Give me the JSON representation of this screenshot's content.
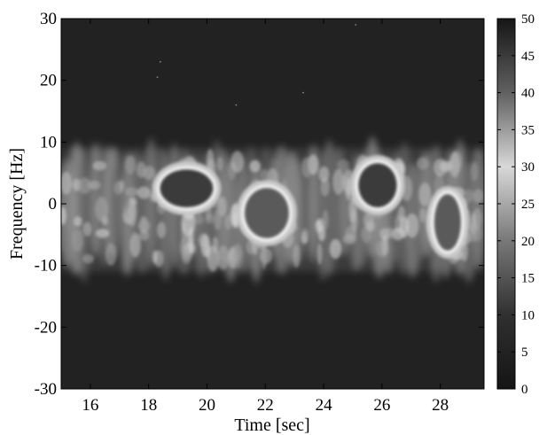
{
  "chart_data": {
    "type": "heatmap",
    "title": "",
    "xlabel": "Time [sec]",
    "ylabel": "Frequency [Hz]",
    "xlim": [
      15,
      29.5
    ],
    "ylim": [
      -30,
      30
    ],
    "xticks": [
      16,
      18,
      20,
      22,
      24,
      26,
      28
    ],
    "yticks": [
      -30,
      -20,
      -10,
      0,
      10,
      20,
      30
    ],
    "colorbar": {
      "range": [
        0,
        50
      ],
      "ticks": [
        0,
        5,
        10,
        15,
        20,
        25,
        30,
        35,
        40,
        45,
        50
      ],
      "colormap": "dark-light-dark gray (peak brightness near 30)",
      "placement": "right"
    },
    "background_level": 0,
    "spectral_band_hz": [
      -13,
      11
    ],
    "high_energy_regions": [
      {
        "time": [
          18.3,
          20.3
        ],
        "freq": [
          -1,
          6
        ],
        "peak_level": 48
      },
      {
        "time": [
          21.2,
          22.9
        ],
        "freq": [
          -6,
          3
        ],
        "peak_level": 45
      },
      {
        "time": [
          25.1,
          26.6
        ],
        "freq": [
          -1,
          7
        ],
        "peak_level": 48
      },
      {
        "time": [
          27.7,
          28.8
        ],
        "freq": [
          -8,
          2
        ],
        "peak_level": 45
      }
    ]
  }
}
